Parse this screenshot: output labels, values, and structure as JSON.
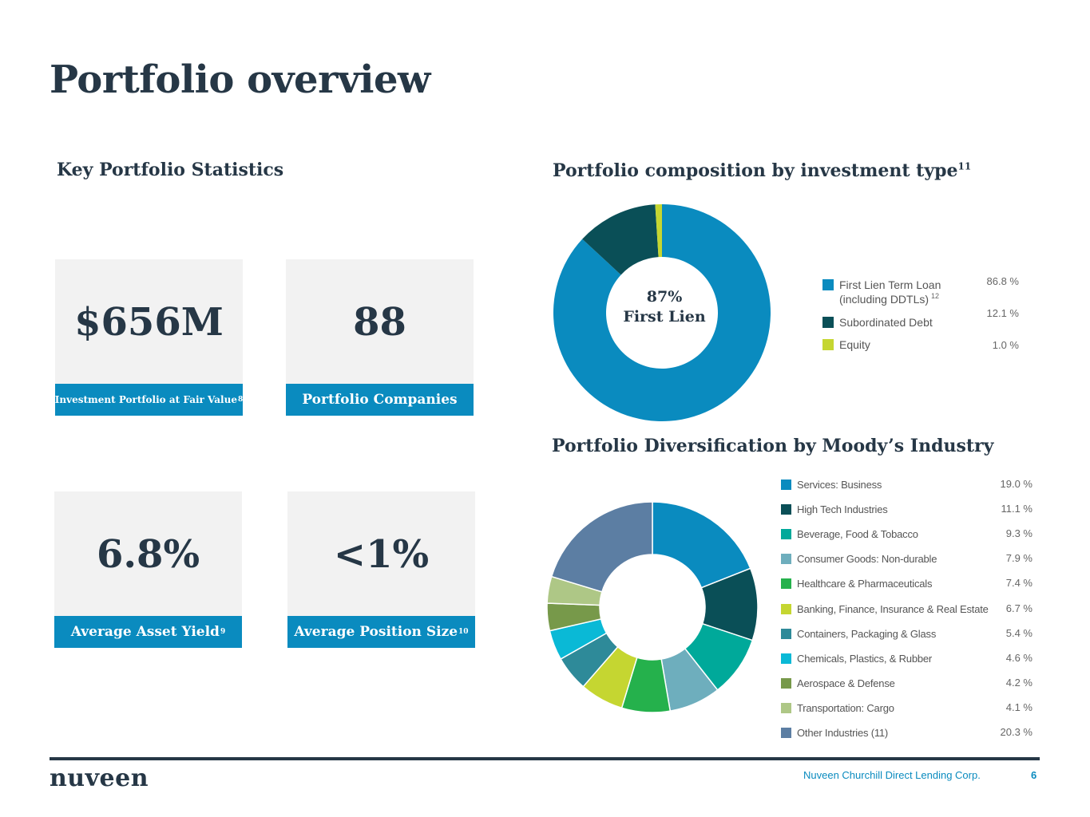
{
  "page_title": "Portfolio overview",
  "stats_section": {
    "title": "Key Portfolio Statistics",
    "cards": [
      {
        "value": "$656M",
        "label": "Investment Portfolio at Fair Value",
        "footnote": "8"
      },
      {
        "value": "88",
        "label": "Portfolio Companies",
        "footnote": ""
      },
      {
        "value": "6.8%",
        "label": "Average Asset Yield",
        "footnote": "9"
      },
      {
        "value": "<1%",
        "label": "Average Position Size",
        "footnote": "10"
      }
    ]
  },
  "composition": {
    "title": "Portfolio composition by investment type",
    "title_footnote": "11",
    "center_line1": "87%",
    "center_line2": "First Lien",
    "legend": [
      {
        "label_line1": "First Lien Term Loan",
        "label_line2": "(including DDTLs)",
        "footnote": "12",
        "value_label": "86.8 %",
        "color": "#0a8bbf"
      },
      {
        "label_line1": "Subordinated Debt",
        "label_line2": "",
        "footnote": "",
        "value_label": "12.1 %",
        "color": "#0a4f57"
      },
      {
        "label_line1": "Equity",
        "label_line2": "",
        "footnote": "",
        "value_label": "1.0 %",
        "color": "#c5d631"
      }
    ]
  },
  "industry": {
    "title": "Portfolio Diversification by Moody’s Industry",
    "legend": [
      {
        "label": "Services: Business",
        "value_label": "19.0 %",
        "color": "#0a8bbf"
      },
      {
        "label": "High Tech Industries",
        "value_label": "11.1 %",
        "color": "#0a4f57"
      },
      {
        "label": "Beverage, Food & Tobacco",
        "value_label": "9.3 %",
        "color": "#00a99a"
      },
      {
        "label": "Consumer Goods: Non-durable",
        "value_label": "7.9 %",
        "color": "#6eaebd"
      },
      {
        "label": "Healthcare & Pharmaceuticals",
        "value_label": "7.4 %",
        "color": "#25b14c"
      },
      {
        "label": "Banking, Finance, Insurance & Real Estate",
        "value_label": "6.7 %",
        "color": "#c5d631"
      },
      {
        "label": "Containers, Packaging & Glass",
        "value_label": "5.4 %",
        "color": "#2e8a99"
      },
      {
        "label": "Chemicals, Plastics, & Rubber",
        "value_label": "4.6 %",
        "color": "#0ab9d6"
      },
      {
        "label": "Aerospace & Defense",
        "value_label": "4.2 %",
        "color": "#77994a"
      },
      {
        "label": "Transportation: Cargo",
        "value_label": "4.1 %",
        "color": "#aec786"
      },
      {
        "label": "Other Industries (11)",
        "value_label": "20.3 %",
        "color": "#5c7ea3"
      }
    ]
  },
  "chart_data": [
    {
      "type": "pie",
      "title": "Portfolio composition by investment type",
      "categories": [
        "First Lien Term Loan (including DDTLs)",
        "Subordinated Debt",
        "Equity"
      ],
      "values": [
        86.8,
        12.1,
        1.0
      ],
      "colors": [
        "#0a8bbf",
        "#0a4f57",
        "#c5d631"
      ]
    },
    {
      "type": "pie",
      "title": "Portfolio Diversification by Moody’s Industry",
      "categories": [
        "Services: Business",
        "High Tech Industries",
        "Beverage, Food & Tobacco",
        "Consumer Goods: Non-durable",
        "Healthcare & Pharmaceuticals",
        "Banking, Finance, Insurance & Real Estate",
        "Containers, Packaging & Glass",
        "Chemicals, Plastics, & Rubber",
        "Aerospace & Defense",
        "Transportation: Cargo",
        "Other Industries (11)"
      ],
      "values": [
        19.0,
        11.1,
        9.3,
        7.9,
        7.4,
        6.7,
        5.4,
        4.6,
        4.2,
        4.1,
        20.3
      ],
      "colors": [
        "#0a8bbf",
        "#0a4f57",
        "#00a99a",
        "#6eaebd",
        "#25b14c",
        "#c5d631",
        "#2e8a99",
        "#0ab9d6",
        "#77994a",
        "#aec786",
        "#5c7ea3"
      ]
    }
  ],
  "footer": {
    "logo": "nuveen",
    "company": "Nuveen Churchill Direct Lending Corp.",
    "page_number": "6"
  }
}
